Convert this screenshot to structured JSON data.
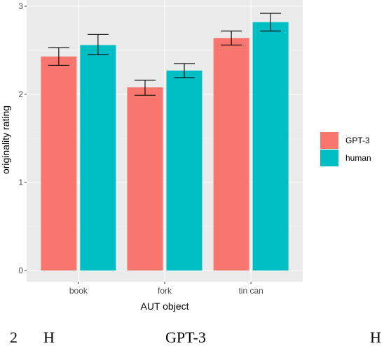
{
  "chart_data": {
    "type": "bar",
    "title": "",
    "xlabel": "AUT object",
    "ylabel": "originality rating",
    "categories": [
      "book",
      "fork",
      "tin can"
    ],
    "ylim": [
      0,
      3
    ],
    "yticks": [
      0,
      1,
      2,
      3
    ],
    "grid": true,
    "legend_position": "right",
    "series": [
      {
        "name": "GPT-3",
        "color": "#F8766D",
        "values": [
          2.43,
          2.08,
          2.64
        ],
        "error_low": [
          2.33,
          1.99,
          2.56
        ],
        "error_high": [
          2.53,
          2.16,
          2.72
        ]
      },
      {
        "name": "human",
        "color": "#00BFC4",
        "values": [
          2.56,
          2.27,
          2.82
        ],
        "error_low": [
          2.45,
          2.19,
          2.72
        ],
        "error_high": [
          2.68,
          2.35,
          2.92
        ]
      }
    ]
  },
  "caption_fragments": [
    "2",
    "H",
    "GPT-3",
    "H"
  ]
}
